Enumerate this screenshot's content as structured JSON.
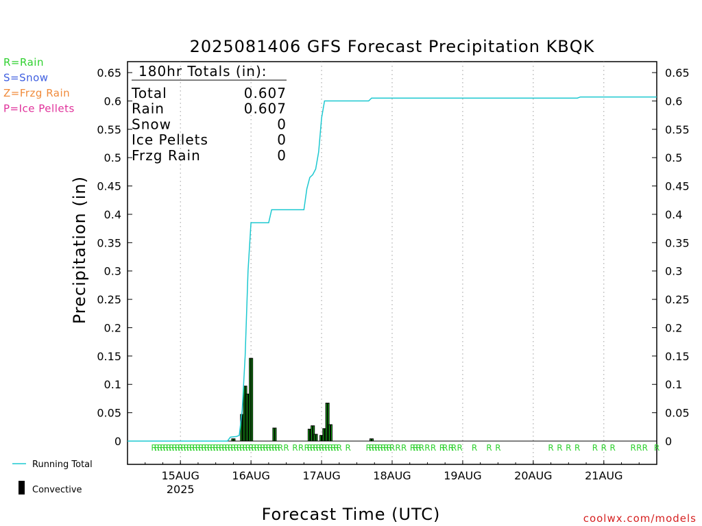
{
  "chart_data": {
    "type": "line",
    "title": "2025081406 GFS Forecast Precipitation KBQK",
    "xlabel": "Forecast Time (UTC)",
    "ylabel": "Precipitation (in)",
    "ylim": [
      0,
      0.65
    ],
    "yticks": [
      "0",
      "0.05",
      "0.1",
      "0.15",
      "0.2",
      "0.25",
      "0.3",
      "0.35",
      "0.4",
      "0.45",
      "0.5",
      "0.55",
      "0.6",
      "0.65"
    ],
    "xticks": [
      {
        "label": "15AUG",
        "sub": "2025",
        "hour": 18
      },
      {
        "label": "16AUG",
        "sub": "",
        "hour": 42
      },
      {
        "label": "17AUG",
        "sub": "",
        "hour": 66
      },
      {
        "label": "18AUG",
        "sub": "",
        "hour": 90
      },
      {
        "label": "19AUG",
        "sub": "",
        "hour": 114
      },
      {
        "label": "20AUG",
        "sub": "",
        "hour": 138
      },
      {
        "label": "21AUG",
        "sub": "",
        "hour": 162
      }
    ],
    "xrange_hours": [
      0,
      180
    ],
    "x_unit": "hours after 2025081406 UTC",
    "grid": "vertical dotted at day boundaries",
    "totals": {
      "header": "180hr Totals (in):",
      "rows": [
        {
          "label": "Total",
          "value": "0.607"
        },
        {
          "label": "Rain",
          "value": "0.607"
        },
        {
          "label": "Snow",
          "value": "0"
        },
        {
          "label": "Ice Pellets",
          "value": "0"
        },
        {
          "label": "Frzg Rain",
          "value": "0"
        }
      ]
    },
    "precip_legend": [
      {
        "text": "R=Rain",
        "color": "#2fd12f"
      },
      {
        "text": "S=Snow",
        "color": "#3f5fe0"
      },
      {
        "text": "Z=Frzg Rain",
        "color": "#f08a3a"
      },
      {
        "text": "P=Ice Pellets",
        "color": "#e0309a"
      }
    ],
    "series_legend": [
      {
        "name": "Running Total",
        "color": "#1cc8d0"
      },
      {
        "name": "Convective",
        "color": "#000000"
      }
    ],
    "running_total": [
      [
        0,
        0
      ],
      [
        34,
        0
      ],
      [
        35,
        0.007
      ],
      [
        37,
        0.008
      ],
      [
        38,
        0.01
      ],
      [
        39,
        0.055
      ],
      [
        40,
        0.15
      ],
      [
        41,
        0.3
      ],
      [
        42,
        0.385
      ],
      [
        48,
        0.385
      ],
      [
        49,
        0.408
      ],
      [
        60,
        0.408
      ],
      [
        61,
        0.445
      ],
      [
        62,
        0.465
      ],
      [
        63,
        0.47
      ],
      [
        64,
        0.48
      ],
      [
        65,
        0.51
      ],
      [
        66,
        0.57
      ],
      [
        67,
        0.6
      ],
      [
        82,
        0.6
      ],
      [
        83,
        0.605
      ],
      [
        153,
        0.605
      ],
      [
        154,
        0.607
      ],
      [
        180,
        0.607
      ]
    ],
    "bars": [
      {
        "hour": 36,
        "total": 0.004,
        "convective": 0.004
      },
      {
        "hour": 39,
        "total": 0.047,
        "convective": 0.047
      },
      {
        "hour": 40,
        "total": 0.097,
        "convective": 0.097
      },
      {
        "hour": 41,
        "total": 0.083,
        "convective": 0.083
      },
      {
        "hour": 42,
        "total": 0.146,
        "convective": 0.146
      },
      {
        "hour": 50,
        "total": 0.023,
        "convective": 0.023
      },
      {
        "hour": 62,
        "total": 0.021,
        "convective": 0.021
      },
      {
        "hour": 63,
        "total": 0.027,
        "convective": 0.027
      },
      {
        "hour": 64,
        "total": 0.012,
        "convective": 0.012
      },
      {
        "hour": 66,
        "total": 0.01,
        "convective": 0.01
      },
      {
        "hour": 67,
        "total": 0.022,
        "convective": 0.022
      },
      {
        "hour": 68,
        "total": 0.067,
        "convective": 0.067
      },
      {
        "hour": 69,
        "total": 0.029,
        "convective": 0.029
      },
      {
        "hour": 83,
        "total": 0.004,
        "convective": 0.004
      }
    ],
    "rain_marker_hours": [
      9,
      10,
      11,
      12,
      13,
      14,
      15,
      16,
      17,
      18,
      19,
      20,
      21,
      22,
      23,
      24,
      25,
      26,
      27,
      28,
      29,
      30,
      31,
      32,
      33,
      34,
      35,
      36,
      37,
      38,
      39,
      40,
      41,
      42,
      43,
      44,
      45,
      46,
      47,
      48,
      49,
      50,
      51,
      52,
      54,
      57,
      59,
      61,
      62,
      63,
      64,
      65,
      66,
      67,
      68,
      69,
      70,
      71,
      72,
      75,
      82,
      83,
      84,
      85,
      86,
      87,
      88,
      89,
      90,
      92,
      94,
      97,
      98,
      99,
      100,
      102,
      104,
      107,
      108,
      110,
      111,
      113,
      118,
      123,
      126,
      144,
      147,
      150,
      153,
      159,
      162,
      165,
      172,
      174,
      176,
      180
    ],
    "rain_marker_char": "R",
    "credit": "coolwx.com/models"
  }
}
